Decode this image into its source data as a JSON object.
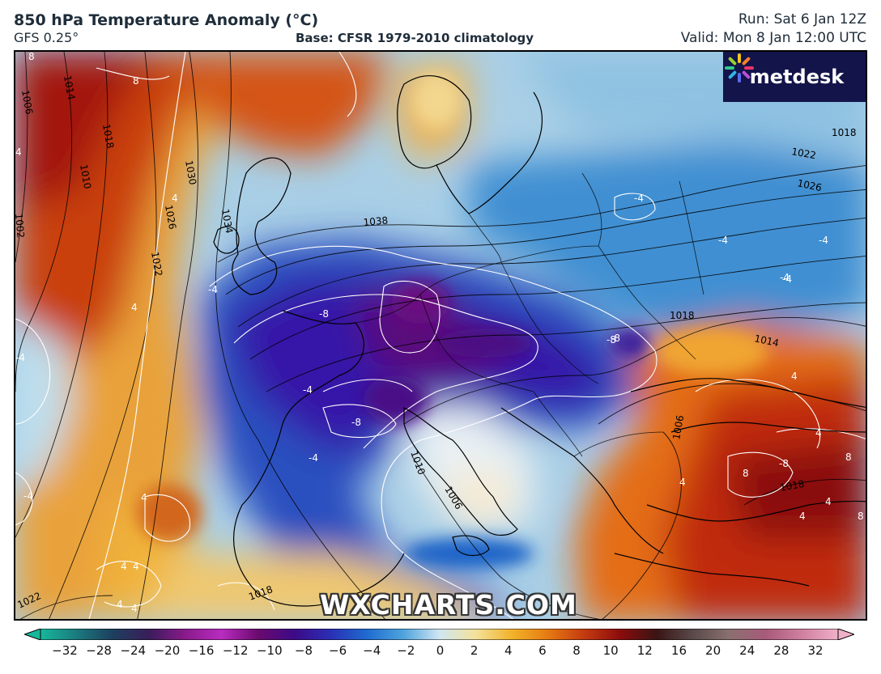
{
  "header": {
    "title": "850 hPa Temperature Anomaly (°C)",
    "model": "GFS 0.25°",
    "base": "Base: CFSR 1979-2010 climatology",
    "run": "Run: Sat 6 Jan 12Z",
    "valid": "Valid: Mon 8 Jan 12:00 UTC"
  },
  "logo": {
    "text": "metdesk",
    "icon": "flower-burst-icon"
  },
  "watermark": "WXCHARTS.COM",
  "colorbar": {
    "ticks": [
      "−32",
      "−28",
      "−24",
      "−20",
      "−16",
      "−12",
      "−10",
      "−8",
      "−6",
      "−4",
      "−2",
      "0",
      "2",
      "4",
      "6",
      "8",
      "10",
      "12",
      "16",
      "20",
      "24",
      "28",
      "32"
    ],
    "colors": [
      "#17b89a",
      "#1a7a7e",
      "#1d3f5e",
      "#3a1d5a",
      "#8a1a8c",
      "#b82cc0",
      "#6b0a6e",
      "#3d0a87",
      "#2a2fb5",
      "#1f6bd0",
      "#4ea3dc",
      "#cfe6f2",
      "#f3e29a",
      "#f2b32a",
      "#e57a12",
      "#c43a10",
      "#8b0c0c",
      "#3a1414",
      "#5a4a4a",
      "#8a7070",
      "#a85a7a",
      "#d07fa0",
      "#f0b0c8"
    ]
  },
  "isobar_labels": [
    "1006",
    "1014",
    "1018",
    "1010",
    "1002",
    "1030",
    "1026",
    "1022",
    "1034",
    "1038",
    "1018",
    "1022",
    "1026",
    "1018",
    "1014",
    "1006",
    "1018",
    "1010",
    "1006",
    "1022",
    "1018"
  ],
  "anomaly_labels": [
    "8",
    "8",
    "4",
    "4",
    "4",
    "-4",
    "-4",
    "-8",
    "-8",
    "-4",
    "-8",
    "-4",
    "-4",
    "-4",
    "-4",
    "4",
    "4",
    "-4",
    "-4",
    "4",
    "4",
    "4",
    "4",
    "8",
    "-8",
    "8",
    "4",
    "4",
    "-8",
    "8",
    "4",
    "4",
    "-4"
  ]
}
